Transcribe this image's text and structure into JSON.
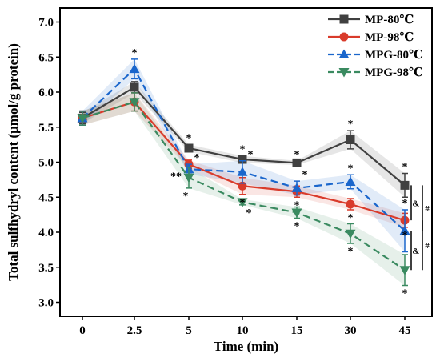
{
  "chart_data": {
    "type": "line",
    "title": "",
    "xlabel": "Time (min)",
    "ylabel": "Total sulfhydryl content (μmol/g protein)",
    "categories": [
      "0",
      "2.5",
      "5",
      "10",
      "15",
      "30",
      "45"
    ],
    "ylim": [
      2.8,
      7.2
    ],
    "yticks": [
      "3.0",
      "3.5",
      "4.0",
      "4.5",
      "5.0",
      "5.5",
      "6.0",
      "6.5",
      "7.0"
    ],
    "grid": false,
    "legend_position": "top-right",
    "series": [
      {
        "name": "MP-80℃",
        "color": "#404040",
        "marker": "square",
        "dash": "solid",
        "values": [
          5.63,
          6.07,
          5.2,
          5.04,
          4.99,
          5.32,
          4.67
        ],
        "errors": [
          0.08,
          0.08,
          0.05,
          0.05,
          0.03,
          0.13,
          0.17
        ],
        "annotations": [
          "",
          "",
          "*",
          "*",
          "*",
          "*",
          "*"
        ]
      },
      {
        "name": "MP-98℃",
        "color": "#d93b2b",
        "marker": "circle",
        "dash": "solid",
        "values": [
          5.63,
          5.86,
          4.97,
          4.66,
          4.58,
          4.4,
          4.17
        ],
        "errors": [
          0.1,
          0.13,
          0.06,
          0.12,
          0.08,
          0.08,
          0.1
        ],
        "annotations": [
          "",
          "",
          "**",
          "*",
          "*",
          "*",
          "*"
        ]
      },
      {
        "name": "MPG-80℃",
        "color": "#1a66cc",
        "marker": "triangle-up",
        "dash": "dashed",
        "values": [
          5.63,
          6.33,
          4.9,
          4.86,
          4.63,
          4.72,
          4.02
        ],
        "errors": [
          0.1,
          0.14,
          0.07,
          0.16,
          0.1,
          0.1,
          0.3
        ],
        "annotations": [
          "",
          "*",
          "*",
          "*",
          "*",
          "*",
          "*"
        ]
      },
      {
        "name": "MPG-98℃",
        "color": "#3a8a60",
        "marker": "triangle-down",
        "dash": "dashed",
        "values": [
          5.63,
          5.86,
          4.78,
          4.43,
          4.28,
          3.98,
          3.46
        ],
        "errors": [
          0.1,
          0.13,
          0.15,
          0.04,
          0.08,
          0.14,
          0.22
        ],
        "annotations": [
          "",
          "",
          "*",
          "*",
          "*",
          "*",
          "*"
        ]
      }
    ],
    "brackets": [
      {
        "label": "&",
        "from": 4.67,
        "to": 4.17
      },
      {
        "label": "#",
        "from": 4.67,
        "to": 4.02
      },
      {
        "label": "&",
        "from": 4.02,
        "to": 3.46
      },
      {
        "label": "#",
        "from": 4.17,
        "to": 3.46
      }
    ]
  }
}
